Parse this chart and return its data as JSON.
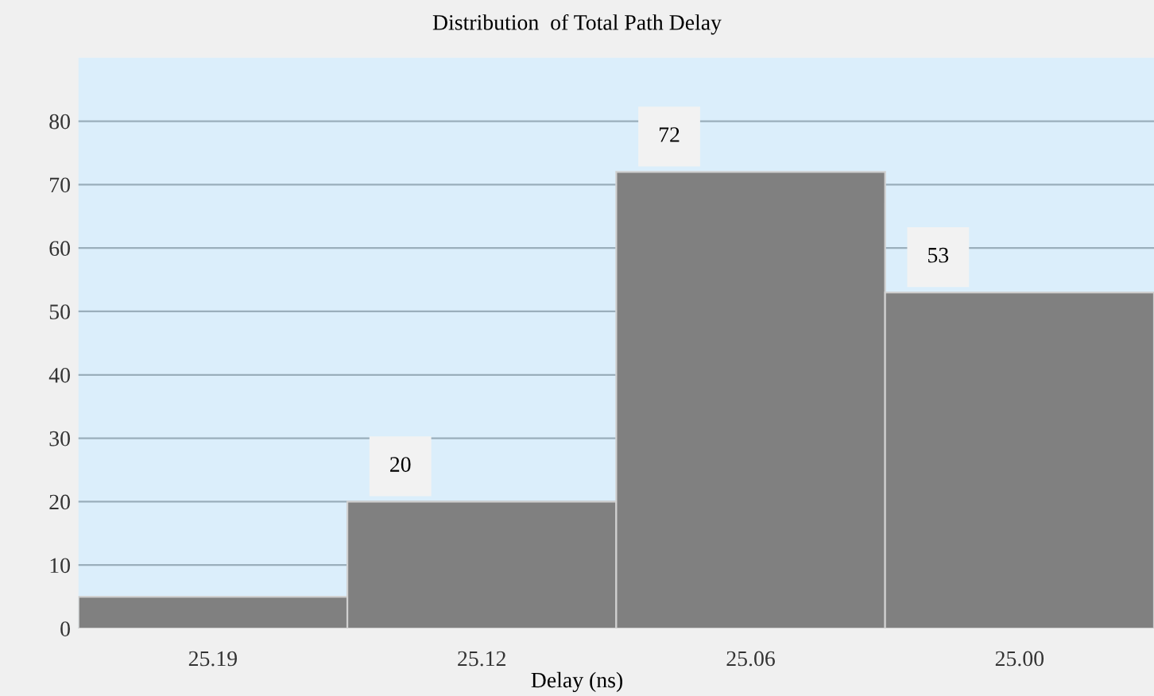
{
  "chart_data": {
    "type": "bar",
    "title": "Distribution  of Total Path Delay",
    "xlabel": "Delay (ns)",
    "categories": [
      "25.19",
      "25.12",
      "25.06",
      "25.00"
    ],
    "values": [
      5,
      20,
      72,
      53
    ],
    "value_labels": [
      null,
      "20",
      "72",
      "53"
    ],
    "color": "#808080",
    "ylim": [
      0,
      90
    ],
    "yticks": [
      0,
      10,
      20,
      30,
      40,
      50,
      60,
      70,
      80
    ],
    "grid": "y"
  }
}
